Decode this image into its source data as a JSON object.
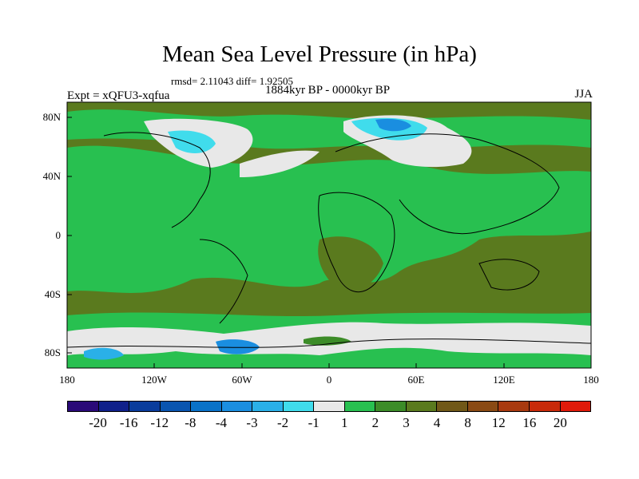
{
  "title": "Mean Sea Level Pressure (in hPa)",
  "stats": "rmsd= 2.11043 diff= 1.92505",
  "period": "1884kyr BP - 0000kyr BP",
  "experiment": "Expt = xQFU3-xqfua",
  "season": "JJA",
  "lat_labels": [
    "80N",
    "40N",
    "0",
    "40S",
    "80S"
  ],
  "lon_labels": [
    "180",
    "120W",
    "60W",
    "0",
    "60E",
    "120E",
    "180"
  ],
  "colorbar": {
    "colors": [
      "#2a0a78",
      "#10208a",
      "#0a3c9c",
      "#0a55b0",
      "#0a72c8",
      "#1a8ee0",
      "#2ab0e8",
      "#40dcec",
      "#e8e8e8",
      "#28c050",
      "#3c8c28",
      "#5a7a1e",
      "#705818",
      "#8a4a14",
      "#a83a10",
      "#c82a0a",
      "#e01a0a"
    ],
    "labels": [
      "-20",
      "-16",
      "-12",
      "-8",
      "-4",
      "-3",
      "-2",
      "-1",
      "1",
      "2",
      "3",
      "4",
      "8",
      "12",
      "16",
      "20"
    ]
  }
}
